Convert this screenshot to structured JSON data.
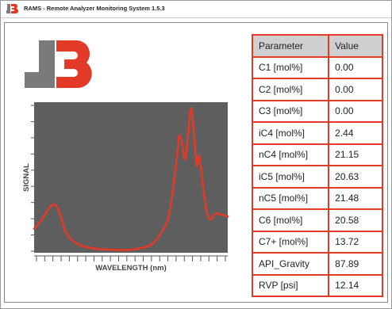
{
  "window": {
    "title": "RAMS - Remote Analyzer Monitoring System 1.5.3",
    "app_icon": "j3-logo-icon"
  },
  "logo": {
    "text": "J3",
    "colors": {
      "letter_j": "#7a7a7a",
      "digit_3": "#e23a26"
    }
  },
  "chart_data": {
    "type": "line",
    "xlabel": "WAVELENGTH (nm)",
    "ylabel": "SIGNAL",
    "background": "#5e5e5e",
    "line_color": "#e23a26",
    "grid": false,
    "tick_labels": false,
    "x_tick_count": 24,
    "y_tick_count": 10,
    "xlim": [
      0,
      100
    ],
    "ylim": [
      0,
      100
    ],
    "series": [
      {
        "x": [
          0,
          4,
          8,
          10,
          12,
          14,
          16,
          19,
          24,
          30,
          40,
          50,
          58,
          62,
          66,
          69,
          71,
          72.5,
          74,
          75,
          76.5,
          78,
          79.5,
          81,
          82.5,
          84,
          85,
          86,
          87.5,
          89,
          91,
          94,
          100
        ],
        "y": [
          16,
          22,
          30,
          32,
          30,
          23,
          15,
          9,
          5,
          3,
          2,
          2,
          4,
          7,
          14,
          22,
          35,
          50,
          66,
          78,
          72,
          62,
          78,
          96,
          80,
          58,
          65,
          58,
          42,
          28,
          22,
          26,
          24
        ]
      }
    ]
  },
  "table": {
    "headers": [
      "Parameter",
      "Value"
    ],
    "rows": [
      {
        "parameter": "C1 [mol%]",
        "value": "0.00"
      },
      {
        "parameter": "C2 [mol%]",
        "value": "0.00"
      },
      {
        "parameter": "C3 [mol%]",
        "value": "0.00"
      },
      {
        "parameter": "iC4 [mol%]",
        "value": "2.44"
      },
      {
        "parameter": "nC4 [mol%]",
        "value": "21.15"
      },
      {
        "parameter": "iC5 [mol%]",
        "value": "20.63"
      },
      {
        "parameter": "nC5 [mol%]",
        "value": "21.48"
      },
      {
        "parameter": "C6 [mol%]",
        "value": "20.58"
      },
      {
        "parameter": "C7+ [mol%]",
        "value": "13.72"
      },
      {
        "parameter": "API_Gravity",
        "value": "87.89"
      },
      {
        "parameter": "RVP [psi]",
        "value": "12.14"
      }
    ],
    "border_color": "#e23a26",
    "header_bg": "#cfcfcf"
  }
}
